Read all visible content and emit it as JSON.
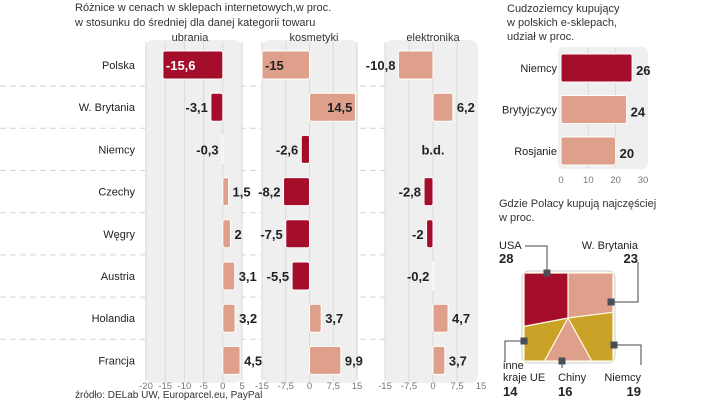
{
  "main_chart": {
    "title_line1": "Różnice w cenach w sklepach internetowych,w proc.",
    "title_line2": "w stosunku do średniej dla danej kategorii towaru",
    "source": "źródło: DELab UW, Europarcel.eu, PayPal"
  },
  "colors": {
    "dark_red": "#a50e2b",
    "pink": "#dea08b",
    "neutral": "#d8d8d8",
    "gold": "#c9a227"
  },
  "chart_data": [
    {
      "type": "bar",
      "orientation": "horizontal",
      "categories": [
        "Polska",
        "W. Brytania",
        "Niemcy",
        "Czechy",
        "Węgry",
        "Austria",
        "Holandia",
        "Francja"
      ],
      "series": [
        {
          "name": "ubrania",
          "values": [
            -15.6,
            -3.1,
            -0.3,
            1.5,
            2,
            3.1,
            3.2,
            4.5
          ],
          "labels": [
            "-15,6",
            "-3,1",
            "-0,3",
            "1,5",
            "2",
            "3,1",
            "3,2",
            "4,5"
          ],
          "colors": [
            "#a50e2b",
            "#a50e2b",
            "#d8d8d8",
            "#dea08b",
            "#dea08b",
            "#dea08b",
            "#dea08b",
            "#dea08b"
          ],
          "xlim": [
            -20,
            5
          ],
          "ticks": [
            "-20",
            "-15",
            "-10",
            "-5",
            "0",
            "5"
          ],
          "tick_values": [
            -20,
            -15,
            -10,
            -5,
            0,
            5
          ]
        },
        {
          "name": "kosmetyki",
          "values": [
            -15,
            14.5,
            -2.6,
            -8.2,
            -7.5,
            -5.5,
            3.7,
            9.9
          ],
          "labels": [
            "-15",
            "14,5",
            "-2,6",
            "-8,2",
            "-7,5",
            "-5,5",
            "3,7",
            "9,9"
          ],
          "colors": [
            "#dea08b",
            "#dea08b",
            "#a50e2b",
            "#a50e2b",
            "#a50e2b",
            "#a50e2b",
            "#dea08b",
            "#dea08b"
          ],
          "xlim": [
            -15,
            15
          ],
          "ticks": [
            "-15",
            "-7,5",
            "0",
            "7,5",
            "15"
          ],
          "tick_values": [
            -15,
            -7.5,
            0,
            7.5,
            15
          ]
        },
        {
          "name": "elektronika",
          "values": [
            -10.8,
            6.2,
            null,
            -2.8,
            -2,
            -0.2,
            4.7,
            3.7
          ],
          "labels": [
            "-10,8",
            "6,2",
            "b.d.",
            "-2,8",
            "-2",
            "-0,2",
            "4,7",
            "3,7"
          ],
          "colors": [
            "#dea08b",
            "#dea08b",
            null,
            "#a50e2b",
            "#a50e2b",
            "#d8d8d8",
            "#dea08b",
            "#dea08b"
          ],
          "xlim": [
            -15,
            15
          ],
          "ticks": [
            "-15",
            "-7,5",
            "0",
            "7,5",
            "15"
          ],
          "tick_values": [
            -15,
            -7.5,
            0,
            7.5,
            15
          ]
        }
      ],
      "grid": true
    },
    {
      "type": "bar",
      "orientation": "horizontal",
      "title": "Cudzoziemcy kupujący w polskich e-sklepach, udział w proc.",
      "title_lines": [
        "Cudzoziemcy kupujący",
        "w polskich e-sklepach,",
        "udział w proc."
      ],
      "categories": [
        "Niemcy",
        "Brytyjczycy",
        "Rosjanie"
      ],
      "values": [
        26,
        24,
        20
      ],
      "labels": [
        "26",
        "24",
        "20"
      ],
      "colors": [
        "#a50e2b",
        "#dea08b",
        "#dea08b"
      ],
      "xlim": [
        0,
        30
      ],
      "ticks": [
        "0",
        "10",
        "20",
        "30"
      ],
      "tick_values": [
        0,
        10,
        20,
        30
      ],
      "grid": true
    },
    {
      "type": "pie",
      "shape": "square",
      "title": "Gdzie Polacy kupują najczęściej w proc.",
      "title_lines": [
        "Gdzie Polacy kupują najczęściej",
        "w proc."
      ],
      "slices": [
        {
          "label": "W. Brytania",
          "value": 23,
          "color": "#dea08b"
        },
        {
          "label": "Niemcy",
          "value": 19,
          "color": "#c9a227"
        },
        {
          "label": "Chiny",
          "value": 16,
          "color": "#dea08b"
        },
        {
          "label": "inne kraje UE",
          "label_lines": [
            "inne",
            "kraje UE"
          ],
          "value": 14,
          "color": "#c9a227"
        },
        {
          "label": "USA",
          "value": 28,
          "color": "#a50e2b"
        }
      ]
    }
  ]
}
